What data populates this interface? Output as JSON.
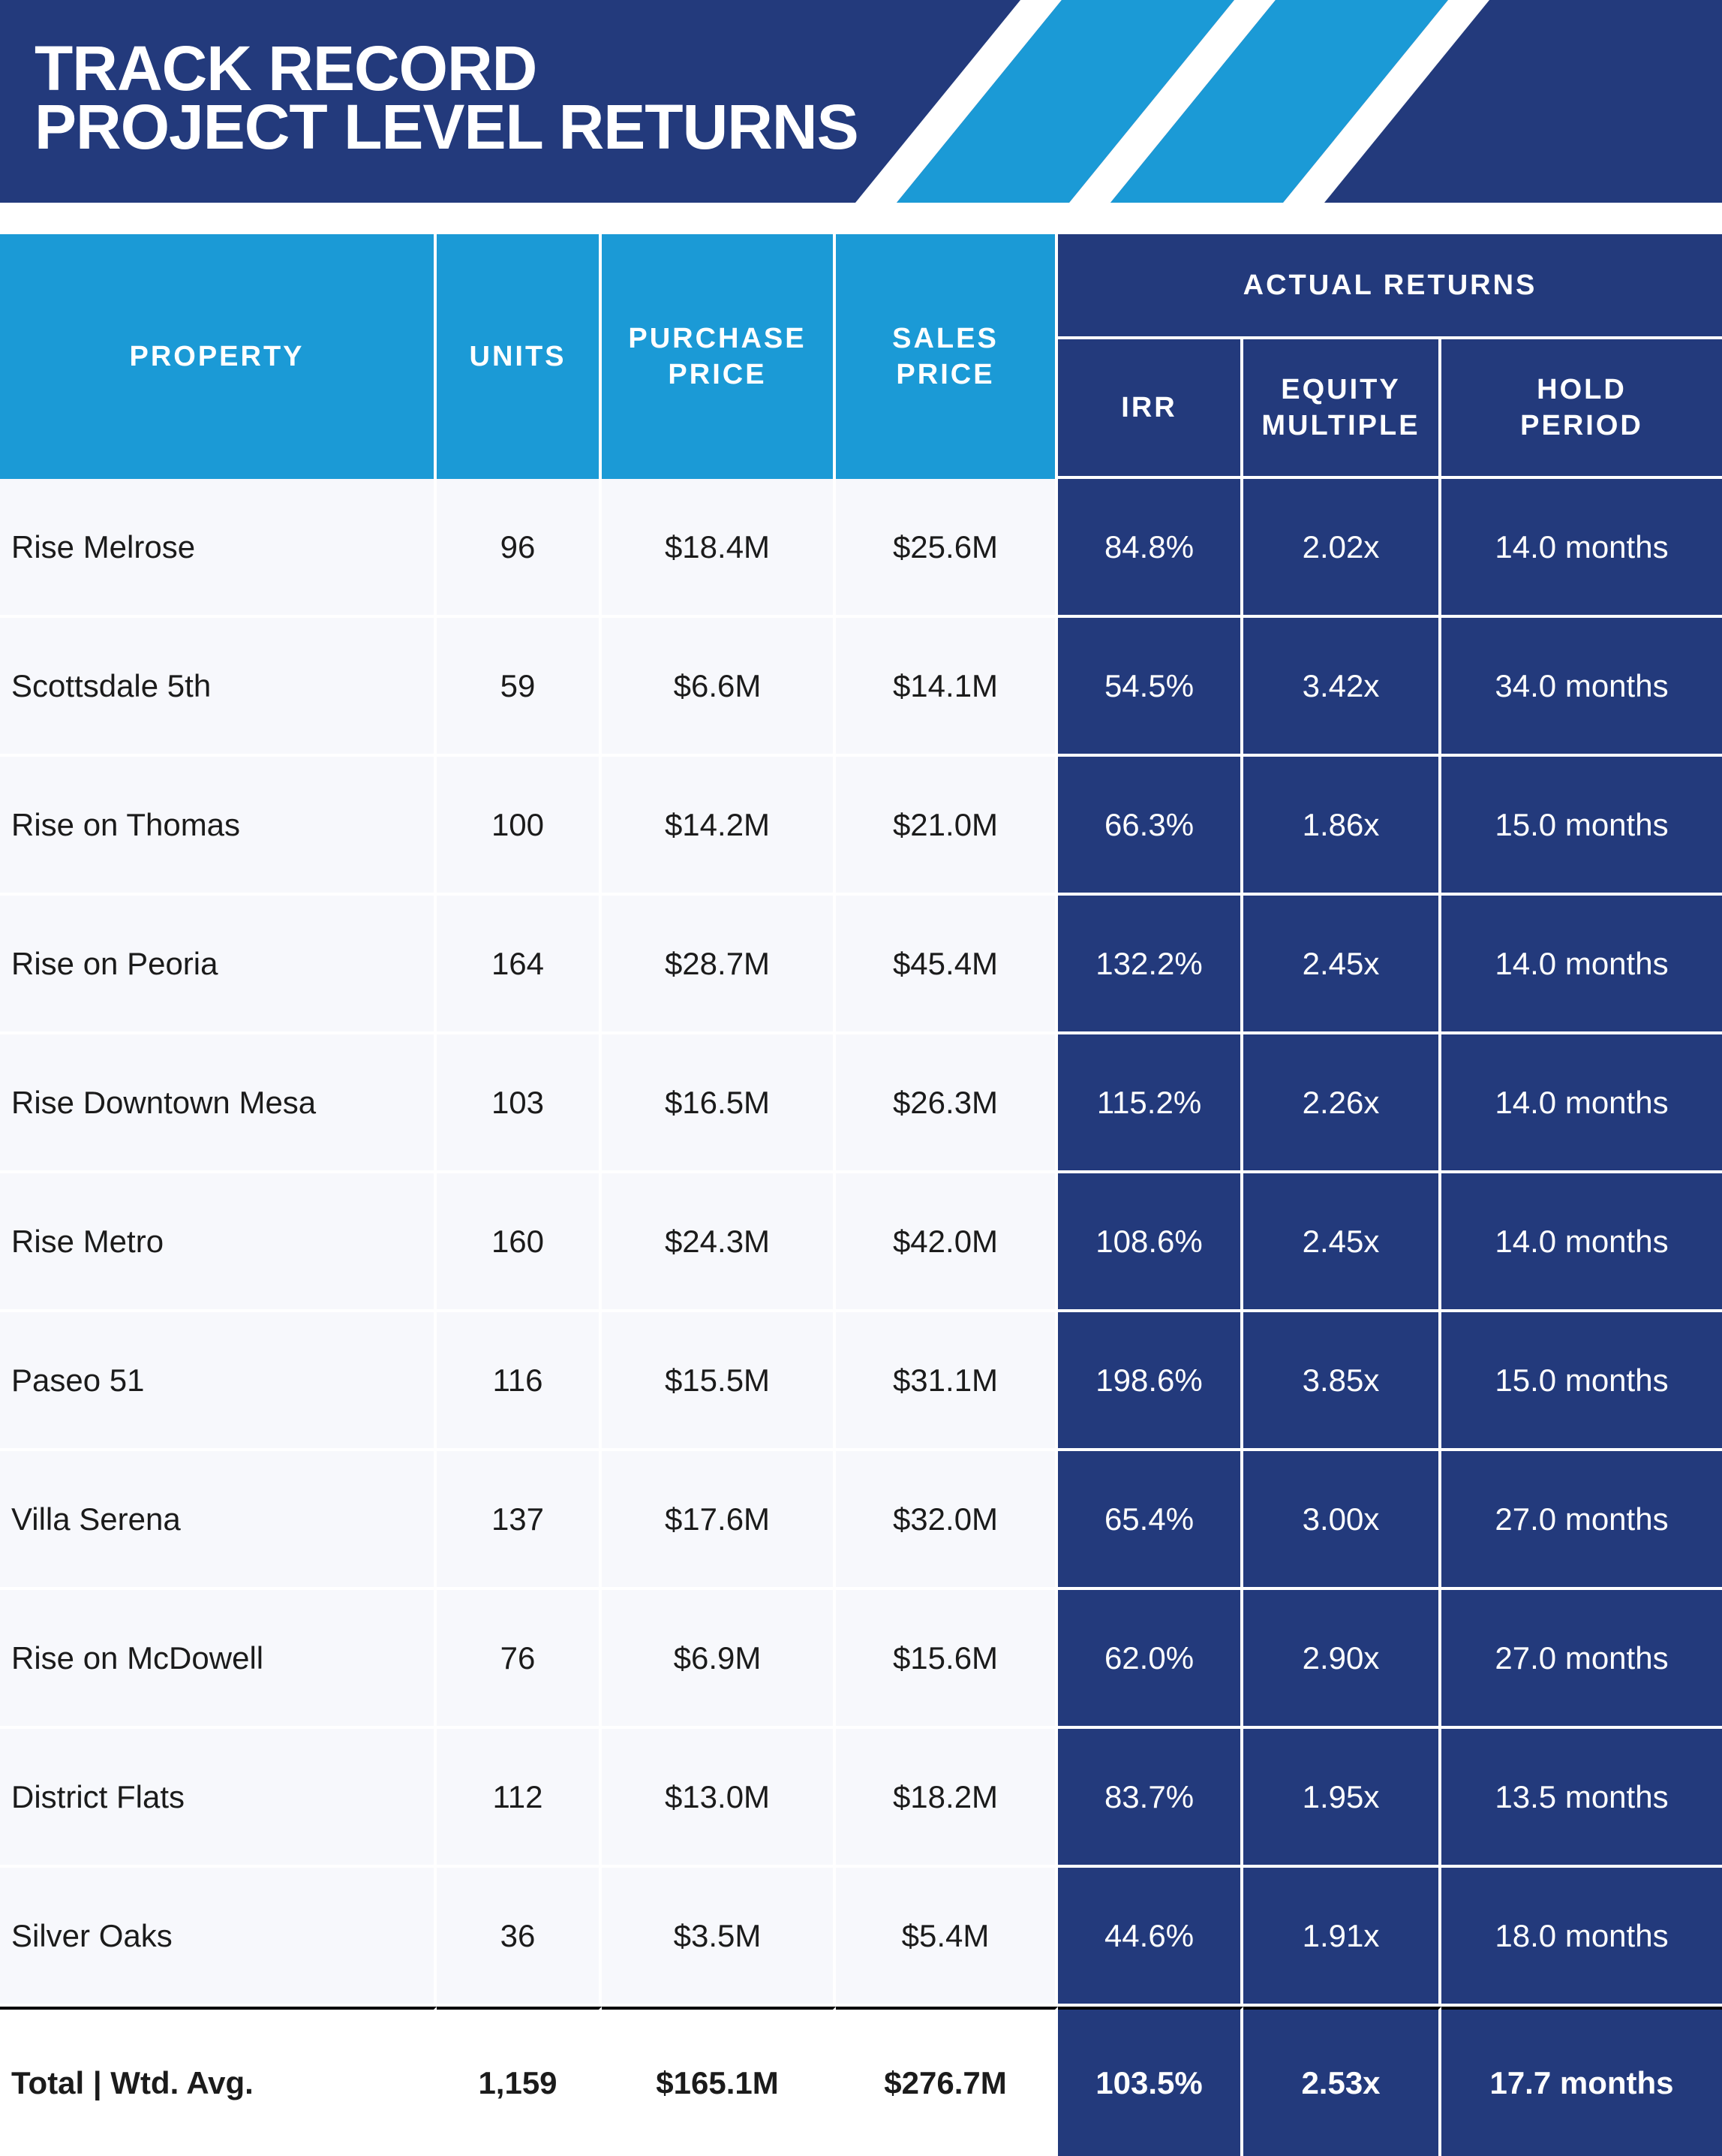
{
  "header": {
    "title_line1": "TRACK RECORD",
    "title_line2": "PROJECT LEVEL RETURNS"
  },
  "colors": {
    "navy": "#233a7c",
    "light_blue": "#1b9ad6",
    "row_bg": "#f7f8fc"
  },
  "table": {
    "headers": {
      "property": "PROPERTY",
      "units": "UNITS",
      "purchase_price_1": "PURCHASE",
      "purchase_price_2": "PRICE",
      "sales_price_1": "SALES",
      "sales_price_2": "PRICE",
      "actual_returns": "ACTUAL RETURNS",
      "irr": "IRR",
      "equity_multiple_1": "EQUITY",
      "equity_multiple_2": "MULTIPLE",
      "hold_period_1": "HOLD",
      "hold_period_2": "PERIOD"
    },
    "rows": [
      {
        "property": "Rise Melrose",
        "units": "96",
        "purchase": "$18.4M",
        "sales": "$25.6M",
        "irr": "84.8%",
        "multiple": "2.02x",
        "hold": "14.0 months"
      },
      {
        "property": "Scottsdale 5th",
        "units": "59",
        "purchase": "$6.6M",
        "sales": "$14.1M",
        "irr": "54.5%",
        "multiple": "3.42x",
        "hold": "34.0 months"
      },
      {
        "property": "Rise on Thomas",
        "units": "100",
        "purchase": "$14.2M",
        "sales": "$21.0M",
        "irr": "66.3%",
        "multiple": "1.86x",
        "hold": "15.0 months"
      },
      {
        "property": "Rise on Peoria",
        "units": "164",
        "purchase": "$28.7M",
        "sales": "$45.4M",
        "irr": "132.2%",
        "multiple": "2.45x",
        "hold": "14.0 months"
      },
      {
        "property": "Rise Downtown Mesa",
        "units": "103",
        "purchase": "$16.5M",
        "sales": "$26.3M",
        "irr": "115.2%",
        "multiple": "2.26x",
        "hold": "14.0 months"
      },
      {
        "property": "Rise Metro",
        "units": "160",
        "purchase": "$24.3M",
        "sales": "$42.0M",
        "irr": "108.6%",
        "multiple": "2.45x",
        "hold": "14.0 months"
      },
      {
        "property": "Paseo 51",
        "units": "116",
        "purchase": "$15.5M",
        "sales": "$31.1M",
        "irr": "198.6%",
        "multiple": "3.85x",
        "hold": "15.0 months"
      },
      {
        "property": "Villa Serena",
        "units": "137",
        "purchase": "$17.6M",
        "sales": "$32.0M",
        "irr": "65.4%",
        "multiple": "3.00x",
        "hold": "27.0 months"
      },
      {
        "property": "Rise on McDowell",
        "units": "76",
        "purchase": "$6.9M",
        "sales": "$15.6M",
        "irr": "62.0%",
        "multiple": "2.90x",
        "hold": "27.0 months"
      },
      {
        "property": "District Flats",
        "units": "112",
        "purchase": "$13.0M",
        "sales": "$18.2M",
        "irr": "83.7%",
        "multiple": "1.95x",
        "hold": "13.5 months"
      },
      {
        "property": "Silver Oaks",
        "units": "36",
        "purchase": "$3.5M",
        "sales": "$5.4M",
        "irr": "44.6%",
        "multiple": "1.91x",
        "hold": "18.0 months"
      }
    ],
    "total": {
      "property": "Total | Wtd. Avg.",
      "units": "1,159",
      "purchase": "$165.1M",
      "sales": "$276.7M",
      "irr": "103.5%",
      "multiple": "2.53x",
      "hold": "17.7 months"
    }
  }
}
